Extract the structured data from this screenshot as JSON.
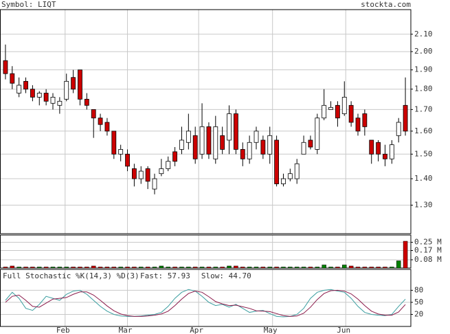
{
  "chart_data": [
    {
      "type": "candlestick",
      "title": "Symbol: LIQT",
      "source": "stockta.com",
      "up_color": "#ffffff",
      "down_color": "#cc0000",
      "log": true,
      "grid": true,
      "xlim": [
        0,
        60
      ],
      "ylim": [
        1.2,
        2.25
      ],
      "yticks": [
        {
          "value": 1.3,
          "label": "1.30"
        },
        {
          "value": 1.4,
          "label": "1.40"
        },
        {
          "value": 1.5,
          "label": "1.50"
        },
        {
          "value": 1.6,
          "label": "1.60"
        },
        {
          "value": 1.7,
          "label": "1.70"
        },
        {
          "value": 1.8,
          "label": "1.80"
        },
        {
          "value": 1.9,
          "label": "1.90"
        },
        {
          "value": 2,
          "label": "2.00"
        },
        {
          "value": 2.1,
          "label": "2.10"
        }
      ],
      "open": [
        1.95,
        1.88,
        1.78,
        1.84,
        1.8,
        1.76,
        1.78,
        1.73,
        1.72,
        1.75,
        1.86,
        1.9,
        1.75,
        1.7,
        1.66,
        1.64,
        1.6,
        1.5,
        1.5,
        1.44,
        1.4,
        1.44,
        1.36,
        1.42,
        1.44,
        1.51,
        1.52,
        1.55,
        1.58,
        1.5,
        1.62,
        1.48,
        1.58,
        1.56,
        1.68,
        1.52,
        1.48,
        1.55,
        1.56,
        1.5,
        1.56,
        1.38,
        1.4,
        1.4,
        1.5,
        1.56,
        1.52,
        1.66,
        1.7,
        1.72,
        1.68,
        1.72,
        1.66,
        1.68,
        1.56,
        1.55,
        1.5,
        1.48,
        1.58,
        1.72
      ],
      "high": [
        2.04,
        1.92,
        1.86,
        1.86,
        1.82,
        1.79,
        1.8,
        1.78,
        1.76,
        1.88,
        1.9,
        1.9,
        1.78,
        1.7,
        1.68,
        1.66,
        1.6,
        1.54,
        1.52,
        1.46,
        1.45,
        1.45,
        1.42,
        1.48,
        1.49,
        1.53,
        1.62,
        1.68,
        1.62,
        1.73,
        1.64,
        1.67,
        1.62,
        1.72,
        1.7,
        1.55,
        1.58,
        1.62,
        1.58,
        1.62,
        1.58,
        1.42,
        1.44,
        1.48,
        1.58,
        1.58,
        1.68,
        1.8,
        1.74,
        1.74,
        1.84,
        1.74,
        1.68,
        1.7,
        1.56,
        1.56,
        1.54,
        1.56,
        1.66,
        1.86
      ],
      "low": [
        1.85,
        1.8,
        1.76,
        1.78,
        1.74,
        1.72,
        1.72,
        1.7,
        1.68,
        1.74,
        1.78,
        1.72,
        1.7,
        1.57,
        1.6,
        1.58,
        1.48,
        1.47,
        1.43,
        1.37,
        1.38,
        1.36,
        1.34,
        1.41,
        1.43,
        1.45,
        1.5,
        1.52,
        1.46,
        1.48,
        1.48,
        1.46,
        1.5,
        1.5,
        1.5,
        1.45,
        1.46,
        1.52,
        1.48,
        1.46,
        1.37,
        1.37,
        1.39,
        1.38,
        1.5,
        1.52,
        1.5,
        1.65,
        1.7,
        1.62,
        1.67,
        1.62,
        1.58,
        1.58,
        1.46,
        1.47,
        1.45,
        1.46,
        1.55,
        1.58
      ],
      "close": [
        1.88,
        1.83,
        1.82,
        1.8,
        1.76,
        1.78,
        1.74,
        1.76,
        1.74,
        1.84,
        1.8,
        1.75,
        1.72,
        1.66,
        1.63,
        1.6,
        1.5,
        1.52,
        1.45,
        1.4,
        1.43,
        1.39,
        1.4,
        1.44,
        1.47,
        1.47,
        1.56,
        1.6,
        1.48,
        1.62,
        1.5,
        1.62,
        1.52,
        1.68,
        1.52,
        1.48,
        1.55,
        1.6,
        1.5,
        1.58,
        1.38,
        1.4,
        1.42,
        1.46,
        1.55,
        1.53,
        1.66,
        1.72,
        1.71,
        1.66,
        1.76,
        1.64,
        1.6,
        1.62,
        1.5,
        1.5,
        1.48,
        1.54,
        1.64,
        1.6
      ]
    },
    {
      "type": "volume",
      "up_color": "#008000",
      "down_color": "#cc0000",
      "grid": true,
      "ylim": [
        0,
        0.32
      ],
      "yticks": [
        {
          "value": 0.08,
          "label": "0.08 M"
        },
        {
          "value": 0.17,
          "label": "0.17 M"
        },
        {
          "value": 0.25,
          "label": "0.25 M"
        }
      ],
      "values": [
        0.01,
        0.02,
        0.01,
        0.01,
        0.01,
        0.01,
        0.01,
        0.01,
        0.01,
        0.01,
        0.01,
        0.01,
        0.01,
        0.02,
        0.01,
        0.01,
        0.01,
        0.01,
        0.01,
        0.01,
        0.01,
        0.01,
        0.01,
        0.02,
        0.01,
        0.01,
        0.01,
        0.01,
        0.01,
        0.01,
        0.01,
        0.01,
        0.01,
        0.02,
        0.02,
        0.01,
        0.01,
        0.01,
        0.01,
        0.01,
        0.01,
        0.01,
        0.01,
        0.01,
        0.01,
        0.01,
        0.01,
        0.03,
        0.01,
        0.01,
        0.03,
        0.02,
        0.01,
        0.01,
        0.01,
        0.01,
        0.01,
        0.01,
        0.07,
        0.26
      ]
    },
    {
      "type": "line",
      "title": "Full Stochastic %K(14,3) %D(3)",
      "grid": true,
      "xlim": [
        0,
        60
      ],
      "ylim": [
        -10,
        132
      ],
      "yticks": [
        20,
        50,
        80
      ],
      "xticks": [
        {
          "value": 9.3,
          "label": "Feb"
        },
        {
          "value": 18.5,
          "label": "Mar"
        },
        {
          "value": 29,
          "label": "Apr"
        },
        {
          "value": 39.9,
          "label": "May"
        },
        {
          "value": 50.7,
          "label": "Jun"
        }
      ],
      "series": [
        {
          "name": "Fast: 57.93",
          "color": "#3a9ea0",
          "values": [
            55,
            75,
            60,
            35,
            30,
            45,
            65,
            60,
            55,
            70,
            78,
            80,
            70,
            55,
            40,
            28,
            20,
            16,
            15,
            15,
            16,
            18,
            20,
            25,
            40,
            60,
            75,
            82,
            78,
            65,
            50,
            42,
            45,
            38,
            45,
            35,
            25,
            28,
            30,
            22,
            15,
            14,
            15,
            20,
            35,
            60,
            75,
            80,
            82,
            78,
            75,
            60,
            40,
            25,
            20,
            18,
            17,
            20,
            40,
            57.93
          ]
        },
        {
          "name": "Slow: 44.70",
          "color": "#8b1a4a",
          "values": [
            50,
            65,
            68,
            55,
            40,
            38,
            48,
            58,
            60,
            62,
            70,
            76,
            76,
            68,
            55,
            41,
            29,
            21,
            17,
            15,
            15,
            16,
            18,
            21,
            28,
            42,
            58,
            72,
            78,
            75,
            64,
            52,
            46,
            42,
            43,
            39,
            35,
            29,
            28,
            27,
            22,
            17,
            15,
            16,
            23,
            38,
            57,
            72,
            79,
            80,
            78,
            71,
            58,
            42,
            28,
            21,
            18,
            18,
            26,
            44.7
          ]
        }
      ]
    }
  ]
}
